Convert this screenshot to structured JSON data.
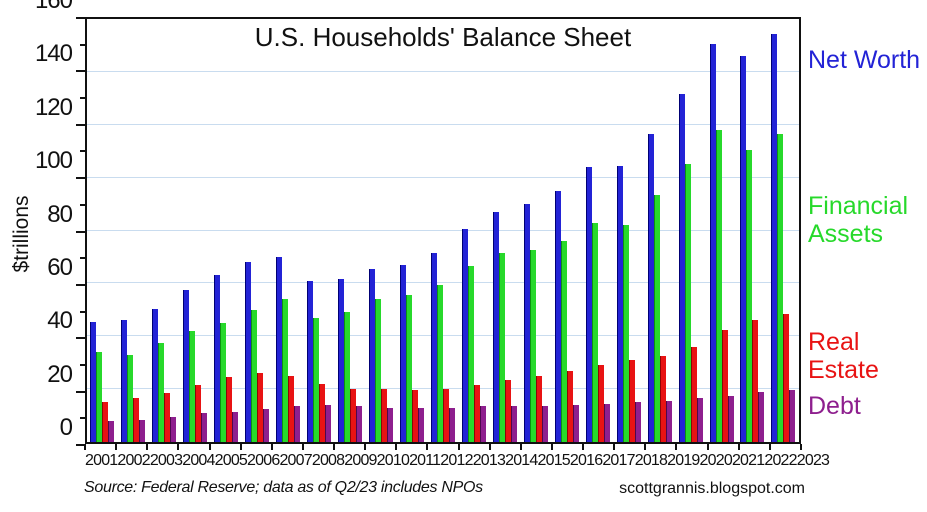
{
  "title": "U.S. Households' Balance Sheet",
  "ylabel": "$trillions",
  "footer": {
    "source_note": "Source: Federal Reserve; data as of Q2/23 includes NPOs",
    "credit": "scottgrannis.blogspot.com"
  },
  "colors": {
    "grid": "#c9dcef",
    "axis": "#111111",
    "background": "#ffffff"
  },
  "chart_data": {
    "type": "bar",
    "title": "U.S. Households' Balance Sheet",
    "xlabel": "",
    "ylabel": "$trillions",
    "ylim": [
      0,
      160
    ],
    "ytick_major_step": 20,
    "ytick_minor_step": 10,
    "grid": "horizontal major gridlines, light blue",
    "legend_position": "right",
    "categories": [
      2001,
      2002,
      2003,
      2004,
      2005,
      2006,
      2007,
      2008,
      2009,
      2010,
      2011,
      2012,
      2013,
      2014,
      2015,
      2016,
      2017,
      2018,
      2019,
      2020,
      2021,
      2022,
      2023
    ],
    "series": [
      {
        "name": "Net Worth",
        "color": "#2323d6",
        "edge": "#000075",
        "values": [
          45.5,
          46,
          50.5,
          57.5,
          63,
          68,
          70,
          61,
          61.5,
          65.5,
          67,
          71.5,
          80.5,
          87,
          90,
          95,
          104,
          104.5,
          116.5,
          131.5,
          150.5,
          146,
          154.5
        ]
      },
      {
        "name": "Financial Assets",
        "color": "#27d92b",
        "edge": "#0b9210",
        "values": [
          34,
          33,
          37.5,
          42,
          45,
          50,
          54,
          47,
          49,
          54,
          55.5,
          59.5,
          66.5,
          71.5,
          72.5,
          76,
          83,
          82,
          93.5,
          105,
          118,
          110.5,
          116.5
        ]
      },
      {
        "name": "Real Estate",
        "color": "#e81313",
        "edge": "#8e0404",
        "values": [
          15,
          16.5,
          18.5,
          21.5,
          24.5,
          26,
          25,
          22,
          20,
          20,
          19.5,
          20,
          21.5,
          23.5,
          25,
          27,
          29,
          31,
          32.5,
          36,
          42.5,
          46,
          48.5
        ]
      },
      {
        "name": "Debt",
        "color": "#8e1f8e",
        "edge": "#4d084d",
        "values": [
          8,
          8.5,
          9.5,
          11,
          11.5,
          12.5,
          13.5,
          14,
          13.5,
          13,
          13,
          13,
          13.5,
          13.5,
          13.5,
          14,
          14.5,
          15,
          15.5,
          16.5,
          17.5,
          19,
          19.5
        ]
      }
    ]
  }
}
